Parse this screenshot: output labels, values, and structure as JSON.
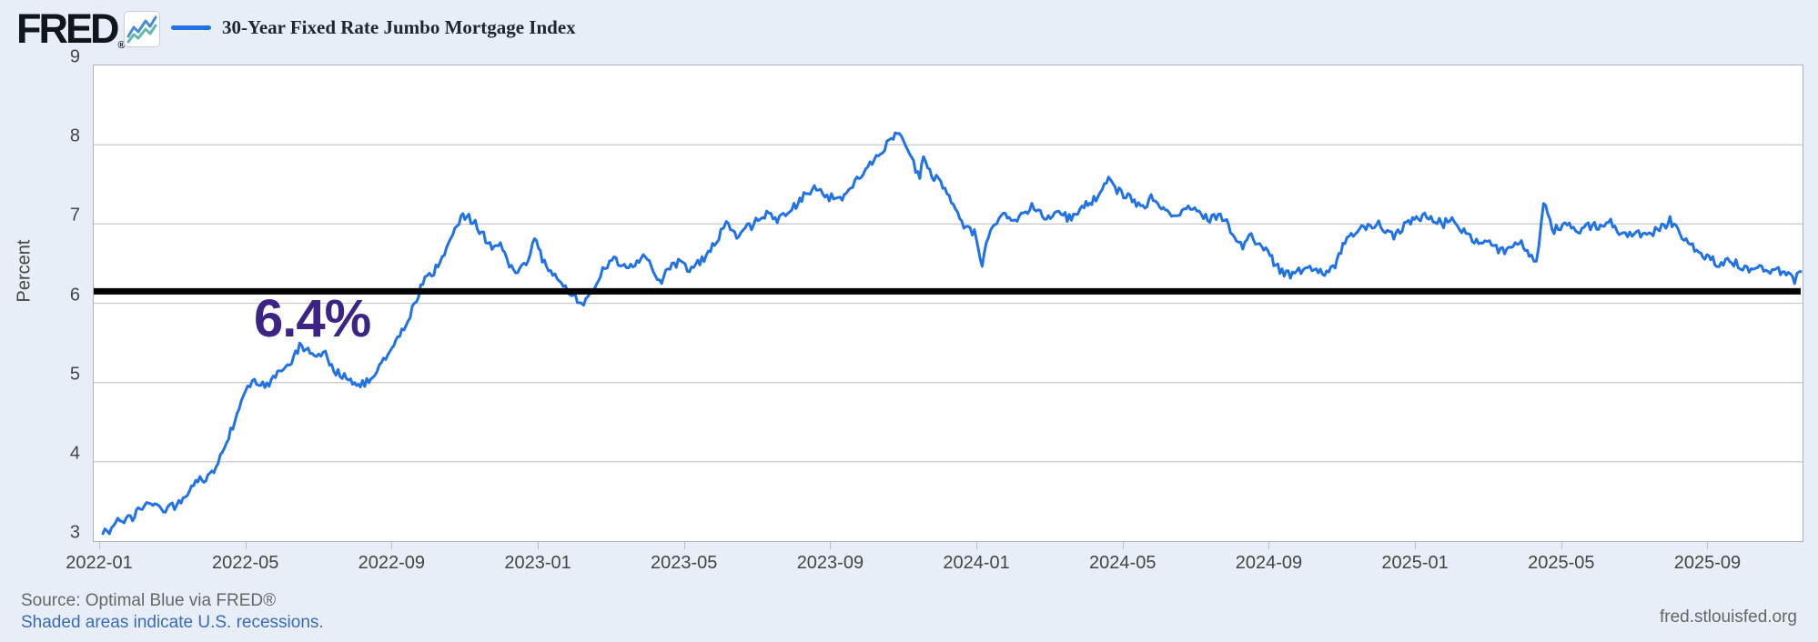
{
  "header": {
    "logo_text": "FRED",
    "logo_reg": "®",
    "legend_label": "30-Year Fixed Rate Jumbo Mortgage Index"
  },
  "footer": {
    "source": "Source: Optimal Blue via FRED®",
    "recessions_note": "Shaded areas indicate U.S. recessions.",
    "site": "fred.stlouisfed.org"
  },
  "colors": {
    "background": "#e7eef8",
    "series_line": "#2172e5",
    "annotation_label": "#3d2484",
    "annotation_line": "#000000",
    "grid": "#cccccc",
    "axis_text": "#444444",
    "link": "#3a6cb3",
    "icon_line_blue": "#4b8bd5",
    "icon_line_teal": "#62b8ad"
  },
  "chart_data": {
    "type": "line",
    "title": "30-Year Fixed Rate Jumbo Mortgage Index",
    "xlabel": "",
    "ylabel": "Percent",
    "ylim": [
      3,
      9
    ],
    "grid": true,
    "legend_position": "top-left",
    "y_ticks": [
      9,
      8,
      7,
      6,
      5,
      4,
      3
    ],
    "x_ticks": [
      {
        "label": "2022-01",
        "month": 0
      },
      {
        "label": "2022-05",
        "month": 4
      },
      {
        "label": "2022-09",
        "month": 8
      },
      {
        "label": "2023-01",
        "month": 12
      },
      {
        "label": "2023-05",
        "month": 16
      },
      {
        "label": "2023-09",
        "month": 20
      },
      {
        "label": "2024-01",
        "month": 24
      },
      {
        "label": "2024-05",
        "month": 28
      },
      {
        "label": "2024-09",
        "month": 32
      },
      {
        "label": "2025-01",
        "month": 36
      },
      {
        "label": "2025-05",
        "month": 40
      },
      {
        "label": "2025-09",
        "month": 44
      }
    ],
    "annotation": {
      "label": "6.4%",
      "line_value": 6.15
    },
    "series": [
      {
        "name": "30-Year Fixed Rate Jumbo Mortgage Index",
        "units": "Percent",
        "points": [
          [
            "2022-01-03",
            3.08
          ],
          [
            "2022-01-07",
            3.12
          ],
          [
            "2022-01-14",
            3.22
          ],
          [
            "2022-01-21",
            3.28
          ],
          [
            "2022-01-28",
            3.3
          ],
          [
            "2022-02-04",
            3.4
          ],
          [
            "2022-02-11",
            3.45
          ],
          [
            "2022-02-18",
            3.42
          ],
          [
            "2022-02-25",
            3.4
          ],
          [
            "2022-03-04",
            3.45
          ],
          [
            "2022-03-11",
            3.6
          ],
          [
            "2022-03-18",
            3.7
          ],
          [
            "2022-03-25",
            3.78
          ],
          [
            "2022-04-01",
            3.8
          ],
          [
            "2022-04-08",
            4.0
          ],
          [
            "2022-04-15",
            4.25
          ],
          [
            "2022-04-22",
            4.5
          ],
          [
            "2022-04-29",
            4.8
          ],
          [
            "2022-05-06",
            5.05
          ],
          [
            "2022-05-13",
            4.95
          ],
          [
            "2022-05-20",
            5.0
          ],
          [
            "2022-05-27",
            5.1
          ],
          [
            "2022-06-03",
            5.15
          ],
          [
            "2022-06-10",
            5.3
          ],
          [
            "2022-06-15",
            5.45
          ],
          [
            "2022-06-22",
            5.4
          ],
          [
            "2022-06-29",
            5.3
          ],
          [
            "2022-07-06",
            5.35
          ],
          [
            "2022-07-13",
            5.15
          ],
          [
            "2022-07-20",
            5.1
          ],
          [
            "2022-07-27",
            5.0
          ],
          [
            "2022-08-03",
            4.95
          ],
          [
            "2022-08-10",
            5.0
          ],
          [
            "2022-08-17",
            5.15
          ],
          [
            "2022-08-24",
            5.3
          ],
          [
            "2022-08-31",
            5.45
          ],
          [
            "2022-09-07",
            5.6
          ],
          [
            "2022-09-14",
            5.8
          ],
          [
            "2022-09-21",
            6.05
          ],
          [
            "2022-09-28",
            6.35
          ],
          [
            "2022-10-05",
            6.4
          ],
          [
            "2022-10-12",
            6.55
          ],
          [
            "2022-10-19",
            6.85
          ],
          [
            "2022-10-26",
            7.05
          ],
          [
            "2022-11-02",
            7.12
          ],
          [
            "2022-11-09",
            7.0
          ],
          [
            "2022-11-16",
            6.85
          ],
          [
            "2022-11-23",
            6.7
          ],
          [
            "2022-11-30",
            6.78
          ],
          [
            "2022-12-07",
            6.45
          ],
          [
            "2022-12-14",
            6.38
          ],
          [
            "2022-12-21",
            6.5
          ],
          [
            "2022-12-28",
            6.82
          ],
          [
            "2023-01-04",
            6.55
          ],
          [
            "2023-01-11",
            6.4
          ],
          [
            "2023-01-18",
            6.28
          ],
          [
            "2023-01-25",
            6.18
          ],
          [
            "2023-02-01",
            6.08
          ],
          [
            "2023-02-08",
            5.98
          ],
          [
            "2023-02-15",
            6.12
          ],
          [
            "2023-02-22",
            6.38
          ],
          [
            "2023-03-01",
            6.55
          ],
          [
            "2023-03-08",
            6.5
          ],
          [
            "2023-03-15",
            6.42
          ],
          [
            "2023-03-22",
            6.52
          ],
          [
            "2023-03-29",
            6.6
          ],
          [
            "2023-04-05",
            6.38
          ],
          [
            "2023-04-12",
            6.3
          ],
          [
            "2023-04-19",
            6.45
          ],
          [
            "2023-04-26",
            6.52
          ],
          [
            "2023-05-03",
            6.42
          ],
          [
            "2023-05-10",
            6.48
          ],
          [
            "2023-05-17",
            6.58
          ],
          [
            "2023-05-24",
            6.72
          ],
          [
            "2023-05-31",
            6.88
          ],
          [
            "2023-06-05",
            7.08
          ],
          [
            "2023-06-12",
            6.85
          ],
          [
            "2023-06-19",
            6.92
          ],
          [
            "2023-06-26",
            6.98
          ],
          [
            "2023-07-03",
            7.1
          ],
          [
            "2023-07-10",
            7.15
          ],
          [
            "2023-07-17",
            7.02
          ],
          [
            "2023-07-24",
            7.12
          ],
          [
            "2023-07-31",
            7.22
          ],
          [
            "2023-08-07",
            7.32
          ],
          [
            "2023-08-14",
            7.42
          ],
          [
            "2023-08-21",
            7.45
          ],
          [
            "2023-08-28",
            7.32
          ],
          [
            "2023-09-05",
            7.38
          ],
          [
            "2023-09-12",
            7.32
          ],
          [
            "2023-09-19",
            7.48
          ],
          [
            "2023-09-26",
            7.62
          ],
          [
            "2023-10-03",
            7.78
          ],
          [
            "2023-10-10",
            7.88
          ],
          [
            "2023-10-17",
            8.02
          ],
          [
            "2023-10-24",
            8.15
          ],
          [
            "2023-10-31",
            8.05
          ],
          [
            "2023-11-07",
            7.82
          ],
          [
            "2023-11-14",
            7.58
          ],
          [
            "2023-11-17",
            7.85
          ],
          [
            "2023-11-24",
            7.62
          ],
          [
            "2023-12-01",
            7.52
          ],
          [
            "2023-12-08",
            7.32
          ],
          [
            "2023-12-15",
            7.12
          ],
          [
            "2023-12-22",
            6.95
          ],
          [
            "2023-12-29",
            6.88
          ],
          [
            "2024-01-05",
            6.52
          ],
          [
            "2024-01-12",
            6.95
          ],
          [
            "2024-01-19",
            7.05
          ],
          [
            "2024-01-26",
            7.12
          ],
          [
            "2024-02-02",
            7.02
          ],
          [
            "2024-02-09",
            7.15
          ],
          [
            "2024-02-16",
            7.22
          ],
          [
            "2024-02-23",
            7.12
          ],
          [
            "2024-03-01",
            7.05
          ],
          [
            "2024-03-08",
            7.15
          ],
          [
            "2024-03-15",
            7.08
          ],
          [
            "2024-03-22",
            7.12
          ],
          [
            "2024-03-29",
            7.22
          ],
          [
            "2024-04-05",
            7.28
          ],
          [
            "2024-04-12",
            7.38
          ],
          [
            "2024-04-19",
            7.55
          ],
          [
            "2024-04-26",
            7.42
          ],
          [
            "2024-05-03",
            7.35
          ],
          [
            "2024-05-10",
            7.28
          ],
          [
            "2024-05-17",
            7.22
          ],
          [
            "2024-05-24",
            7.32
          ],
          [
            "2024-05-31",
            7.25
          ],
          [
            "2024-06-07",
            7.18
          ],
          [
            "2024-06-14",
            7.1
          ],
          [
            "2024-06-21",
            7.15
          ],
          [
            "2024-06-28",
            7.2
          ],
          [
            "2024-07-05",
            7.12
          ],
          [
            "2024-07-12",
            7.05
          ],
          [
            "2024-07-19",
            7.12
          ],
          [
            "2024-07-26",
            7.02
          ],
          [
            "2024-08-02",
            6.82
          ],
          [
            "2024-08-09",
            6.72
          ],
          [
            "2024-08-16",
            6.85
          ],
          [
            "2024-08-23",
            6.75
          ],
          [
            "2024-08-30",
            6.62
          ],
          [
            "2024-09-06",
            6.48
          ],
          [
            "2024-09-13",
            6.38
          ],
          [
            "2024-09-20",
            6.35
          ],
          [
            "2024-09-27",
            6.42
          ],
          [
            "2024-10-04",
            6.48
          ],
          [
            "2024-10-11",
            6.42
          ],
          [
            "2024-10-18",
            6.38
          ],
          [
            "2024-10-25",
            6.48
          ],
          [
            "2024-11-01",
            6.72
          ],
          [
            "2024-11-08",
            6.85
          ],
          [
            "2024-11-15",
            6.92
          ],
          [
            "2024-11-22",
            6.95
          ],
          [
            "2024-11-29",
            7.02
          ],
          [
            "2024-12-06",
            6.92
          ],
          [
            "2024-12-13",
            6.82
          ],
          [
            "2024-12-20",
            6.95
          ],
          [
            "2024-12-27",
            7.05
          ],
          [
            "2025-01-03",
            7.05
          ],
          [
            "2025-01-10",
            7.1
          ],
          [
            "2025-01-17",
            7.05
          ],
          [
            "2025-01-24",
            7.0
          ],
          [
            "2025-01-31",
            7.06
          ],
          [
            "2025-02-07",
            6.96
          ],
          [
            "2025-02-14",
            6.86
          ],
          [
            "2025-02-21",
            6.76
          ],
          [
            "2025-02-28",
            6.8
          ],
          [
            "2025-03-07",
            6.7
          ],
          [
            "2025-03-14",
            6.64
          ],
          [
            "2025-03-21",
            6.7
          ],
          [
            "2025-03-28",
            6.76
          ],
          [
            "2025-04-04",
            6.62
          ],
          [
            "2025-04-10",
            6.48
          ],
          [
            "2025-04-16",
            7.3
          ],
          [
            "2025-04-23",
            6.92
          ],
          [
            "2025-04-30",
            6.95
          ],
          [
            "2025-05-07",
            7.0
          ],
          [
            "2025-05-14",
            6.9
          ],
          [
            "2025-05-21",
            6.96
          ],
          [
            "2025-05-28",
            7.0
          ],
          [
            "2025-06-04",
            6.94
          ],
          [
            "2025-06-11",
            7.04
          ],
          [
            "2025-06-18",
            6.9
          ],
          [
            "2025-06-25",
            6.86
          ],
          [
            "2025-07-02",
            6.9
          ],
          [
            "2025-07-09",
            6.84
          ],
          [
            "2025-07-16",
            6.9
          ],
          [
            "2025-07-23",
            6.96
          ],
          [
            "2025-07-30",
            7.04
          ],
          [
            "2025-08-06",
            6.9
          ],
          [
            "2025-08-13",
            6.8
          ],
          [
            "2025-08-20",
            6.7
          ],
          [
            "2025-08-27",
            6.6
          ],
          [
            "2025-09-03",
            6.56
          ],
          [
            "2025-09-10",
            6.46
          ],
          [
            "2025-09-17",
            6.56
          ],
          [
            "2025-09-24",
            6.5
          ],
          [
            "2025-10-01",
            6.46
          ],
          [
            "2025-10-08",
            6.4
          ],
          [
            "2025-10-15",
            6.46
          ],
          [
            "2025-10-22",
            6.36
          ],
          [
            "2025-10-29",
            6.42
          ],
          [
            "2025-11-05",
            6.36
          ],
          [
            "2025-11-12",
            6.3
          ],
          [
            "2025-11-18",
            6.4
          ]
        ]
      }
    ]
  }
}
